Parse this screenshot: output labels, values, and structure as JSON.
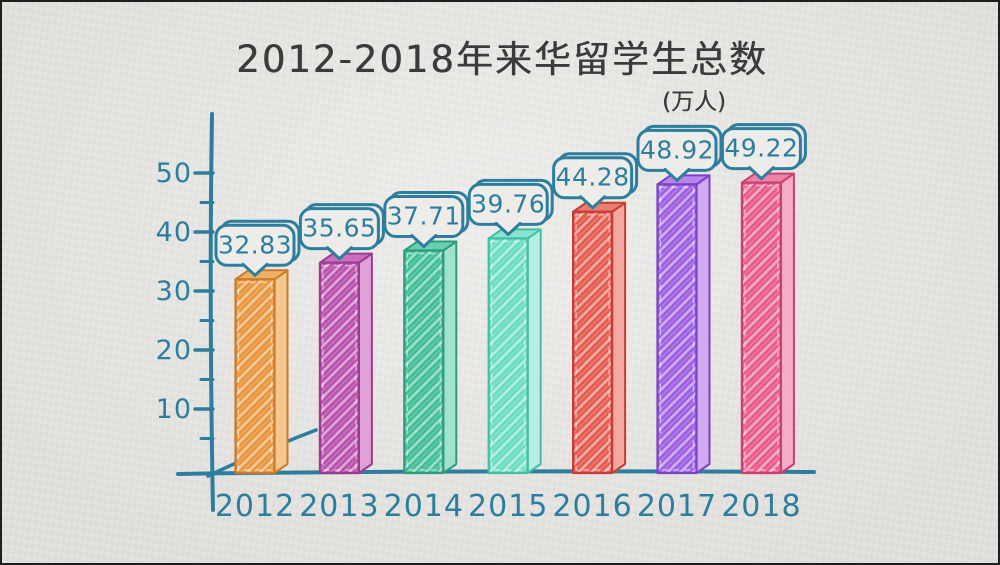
{
  "title": "2012-2018年来华留学生总数",
  "unit_label": "(万人)",
  "chart_data": {
    "type": "bar",
    "title": "2012-2018年来华留学生总数",
    "unit": "万人",
    "categories": [
      "2012",
      "2013",
      "2014",
      "2015",
      "2016",
      "2017",
      "2018"
    ],
    "values": [
      32.83,
      35.65,
      37.71,
      39.76,
      44.28,
      48.92,
      49.22
    ],
    "value_labels": [
      "32.83",
      "35.65",
      "37.71",
      "39.76",
      "44.28",
      "48.92",
      "49.22"
    ],
    "xlabel": "",
    "ylabel": "",
    "ylim": [
      0,
      55
    ],
    "major_yticks": [
      10,
      20,
      30,
      40,
      50
    ],
    "minor_yticks": [
      5,
      15,
      25,
      35,
      45
    ],
    "grid": false,
    "legend": false,
    "style": "hand-drawn sketch, 3d hatched bars, speech-bubble value labels above bars",
    "axis_color": "#2d7e9e",
    "title_color": "#3b3b3b",
    "background_color": "#e9e8e5",
    "bubble_fill": "#edece8",
    "bubble_stroke": "#2d7e9e",
    "bar_colors": [
      {
        "name": "orange",
        "front": "#e8953c",
        "side": "#f4c78f",
        "top": "#f0b064",
        "stroke": "#c97b28"
      },
      {
        "name": "magenta",
        "front": "#b951ac",
        "side": "#dfa2d6",
        "top": "#c96fbe",
        "stroke": "#9c3b90"
      },
      {
        "name": "teal-green",
        "front": "#41bd98",
        "side": "#9fe3ce",
        "top": "#66d0af",
        "stroke": "#2e9b7c"
      },
      {
        "name": "aqua",
        "front": "#69dcc3",
        "side": "#b5efe1",
        "top": "#86e5d1",
        "stroke": "#43bfa5"
      },
      {
        "name": "coral-red",
        "front": "#e55b50",
        "side": "#f3a9a1",
        "top": "#ea7e71",
        "stroke": "#c43e35"
      },
      {
        "name": "violet",
        "front": "#9d5fe2",
        "side": "#d0abf2",
        "top": "#b684ea",
        "stroke": "#7c41c6"
      },
      {
        "name": "pink",
        "front": "#e95a8c",
        "side": "#f6acc7",
        "top": "#ee83a9",
        "stroke": "#cc3d70"
      }
    ]
  }
}
